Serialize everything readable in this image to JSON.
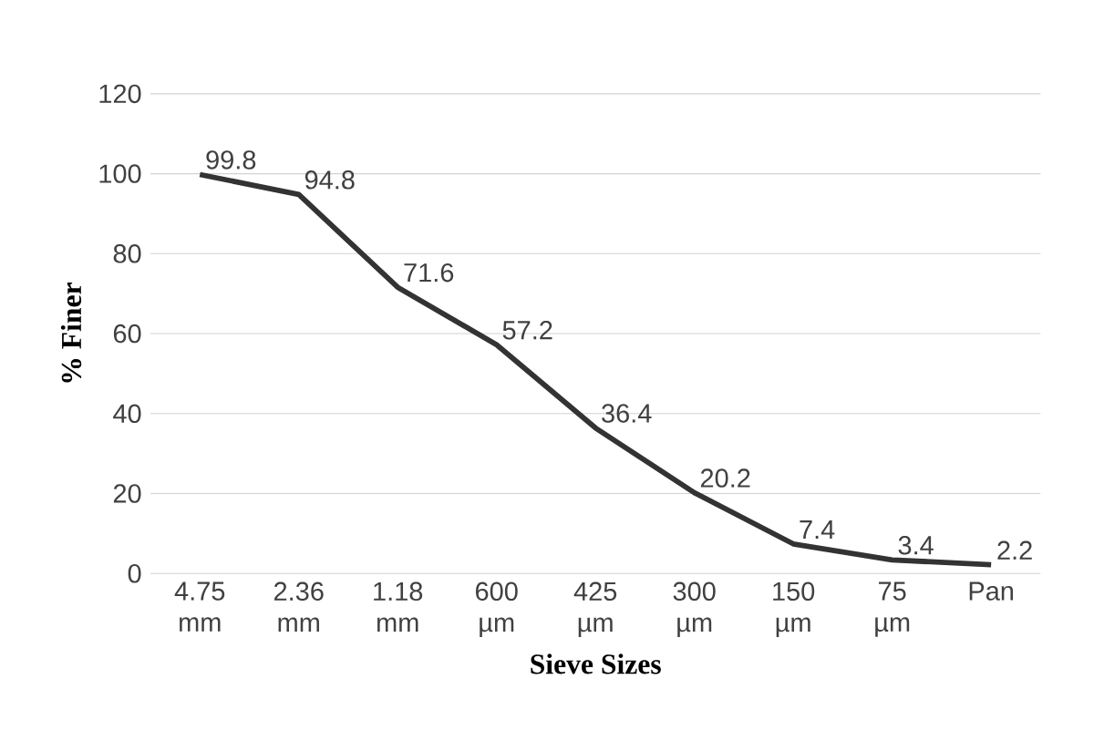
{
  "chart_data": {
    "type": "line",
    "xlabel": "Sieve Sizes",
    "ylabel": "% Finer",
    "categories": [
      "4.75 mm",
      "2.36 mm",
      "1.18 mm",
      "600 µm",
      "425 µm",
      "300 µm",
      "150 µm",
      "75 µm",
      "Pan"
    ],
    "series": [
      {
        "color": "#333333",
        "values": [
          99.8,
          94.8,
          71.6,
          57.2,
          36.4,
          20.2,
          7.4,
          3.4,
          2.2
        ]
      }
    ],
    "ylim": [
      0,
      120
    ],
    "yticks": [
      0,
      20,
      40,
      60,
      80,
      100,
      120
    ],
    "grid": "y",
    "data_labels": true,
    "marker": "none",
    "line_style": "solid"
  }
}
